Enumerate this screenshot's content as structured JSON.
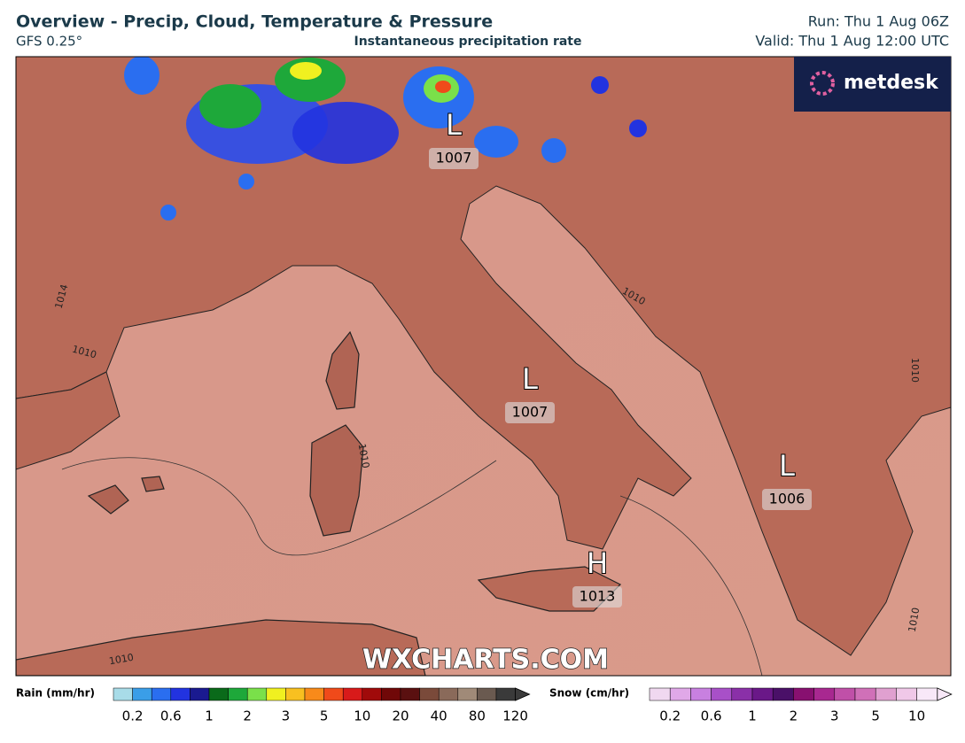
{
  "header": {
    "title": "Overview - Precip, Cloud, Temperature & Pressure",
    "model": "GFS 0.25°",
    "subtitle": "Instantaneous precipitation rate",
    "run": "Run: Thu 1 Aug 06Z",
    "valid": "Valid: Thu 1 Aug 12:00 UTC"
  },
  "logo": "metdesk",
  "watermark": "WXCHARTS.COM",
  "pressure_centers": [
    {
      "symbol": "L",
      "value": 1007
    },
    {
      "symbol": "L",
      "value": 1007
    },
    {
      "symbol": "L",
      "value": 1006
    },
    {
      "symbol": "H",
      "value": 1013
    }
  ],
  "isobar_labels": [
    1014,
    1010,
    1010,
    1010,
    1010,
    1010,
    1010
  ],
  "legend": {
    "rain": {
      "title": "Rain (mm/hr)",
      "labels": [
        0.2,
        0.6,
        1,
        2,
        3,
        5,
        10,
        20,
        40,
        80,
        120
      ],
      "colors": [
        "#a8dce8",
        "#3a9ee8",
        "#2a6ef0",
        "#2233e0",
        "#1a1a90",
        "#0a6a1a",
        "#1ea83a",
        "#7ae04a",
        "#f0f020",
        "#f8c020",
        "#f88a1a",
        "#f04a1a",
        "#d81a1a",
        "#a00a0a",
        "#700808",
        "#5a1010",
        "#7a4a3a",
        "#8a6a5a",
        "#a08a78",
        "#6a5a50",
        "#3a3a3a"
      ]
    },
    "snow": {
      "title": "Snow (cm/hr)",
      "labels": [
        0.2,
        0.6,
        1,
        2,
        3,
        5,
        10
      ],
      "colors": [
        "#f0d8f0",
        "#e0a8e8",
        "#c880e0",
        "#a850c8",
        "#8a30a8",
        "#6a1888",
        "#4a1068",
        "#881070",
        "#a82890",
        "#c050a8",
        "#d070b8",
        "#e0a0d0",
        "#f0c8e8",
        "#f8e8f8"
      ]
    }
  }
}
